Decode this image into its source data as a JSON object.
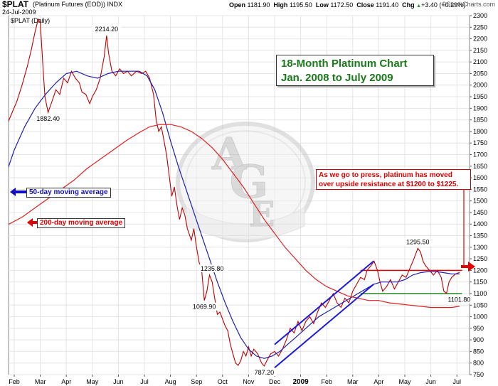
{
  "header": {
    "symbol": "$PLAT",
    "description": "(Platinum Futures (EOD)) INDX",
    "date": "24-Jul-2009",
    "open_label": "Open",
    "open": "1181.90",
    "high_label": "High",
    "high": "1195.50",
    "low_label": "Low",
    "low": "1172.50",
    "close_label": "Close",
    "close": "1191.40",
    "chg_label": "Chg",
    "chg": "+3.40 (+0.29%)",
    "chg_arrow": "▲",
    "brand": "©StockCharts.com"
  },
  "chart_data": {
    "type": "line",
    "panel_label": "$PLAT (Daily)",
    "title": "18-Month Platinum Chart",
    "subtitle": "Jan. 2008 to July 2009",
    "ylim": [
      750,
      2300
    ],
    "yticks": [
      750,
      800,
      850,
      900,
      950,
      1000,
      1050,
      1100,
      1150,
      1200,
      1250,
      1300,
      1350,
      1400,
      1450,
      1500,
      1550,
      1600,
      1650,
      1700,
      1750,
      1800,
      1850,
      1900,
      1950,
      2000,
      2050,
      2100,
      2150,
      2200,
      2250,
      2300
    ],
    "xlim": [
      0,
      19
    ],
    "xticks": [
      {
        "label": "Feb",
        "x": 0
      },
      {
        "label": "Mar",
        "x": 1
      },
      {
        "label": "Apr",
        "x": 2
      },
      {
        "label": "May",
        "x": 3
      },
      {
        "label": "Jun",
        "x": 4
      },
      {
        "label": "Jul",
        "x": 5
      },
      {
        "label": "Aug",
        "x": 6
      },
      {
        "label": "Sep",
        "x": 7
      },
      {
        "label": "Oct",
        "x": 8
      },
      {
        "label": "Nov",
        "x": 9
      },
      {
        "label": "Dec",
        "x": 10
      },
      {
        "label": "2009",
        "x": 11
      },
      {
        "label": "Feb",
        "x": 12
      },
      {
        "label": "Mar",
        "x": 13
      },
      {
        "label": "Apr",
        "x": 14
      },
      {
        "label": "May",
        "x": 15
      },
      {
        "label": "Jun",
        "x": 16
      },
      {
        "label": "Jul",
        "x": 17
      }
    ],
    "series": [
      {
        "key": "price",
        "color": "#c00000",
        "points": [
          [
            -0.55,
            1670
          ],
          [
            -0.45,
            1760
          ],
          [
            -0.35,
            1800
          ],
          [
            -0.2,
            1850
          ],
          [
            -0.05,
            1890
          ],
          [
            0.1,
            1930
          ],
          [
            0.3,
            2000
          ],
          [
            0.5,
            2080
          ],
          [
            0.65,
            2150
          ],
          [
            0.8,
            2230
          ],
          [
            0.92,
            2285
          ],
          [
            1.0,
            2270
          ],
          [
            1.05,
            2180
          ],
          [
            1.12,
            2050
          ],
          [
            1.18,
            1950
          ],
          [
            1.3,
            1882
          ],
          [
            1.45,
            1930
          ],
          [
            1.6,
            1980
          ],
          [
            1.75,
            1960
          ],
          [
            1.9,
            2030
          ],
          [
            2.05,
            2010
          ],
          [
            2.2,
            2060
          ],
          [
            2.35,
            2030
          ],
          [
            2.5,
            2010
          ],
          [
            2.6,
            1970
          ],
          [
            2.75,
            1960
          ],
          [
            2.9,
            1920
          ],
          [
            3.0,
            1950
          ],
          [
            3.15,
            1980
          ],
          [
            3.3,
            2030
          ],
          [
            3.45,
            2120
          ],
          [
            3.55,
            2214
          ],
          [
            3.62,
            2140
          ],
          [
            3.75,
            2060
          ],
          [
            3.9,
            2040
          ],
          [
            4.05,
            2070
          ],
          [
            4.2,
            2050
          ],
          [
            4.35,
            2060
          ],
          [
            4.5,
            2040
          ],
          [
            4.7,
            2060
          ],
          [
            4.9,
            2050
          ],
          [
            5.05,
            2060
          ],
          [
            5.2,
            2030
          ],
          [
            5.35,
            1960
          ],
          [
            5.45,
            1850
          ],
          [
            5.55,
            1800
          ],
          [
            5.65,
            1820
          ],
          [
            5.75,
            1760
          ],
          [
            5.85,
            1700
          ],
          [
            5.95,
            1610
          ],
          [
            6.05,
            1520
          ],
          [
            6.15,
            1560
          ],
          [
            6.25,
            1480
          ],
          [
            6.35,
            1420
          ],
          [
            6.45,
            1470
          ],
          [
            6.55,
            1440
          ],
          [
            6.65,
            1380
          ],
          [
            6.8,
            1330
          ],
          [
            6.9,
            1380
          ],
          [
            7.0,
            1300
          ],
          [
            7.1,
            1235
          ],
          [
            7.2,
            1200
          ],
          [
            7.3,
            1070
          ],
          [
            7.4,
            1110
          ],
          [
            7.5,
            1180
          ],
          [
            7.6,
            1150
          ],
          [
            7.7,
            1080
          ],
          [
            7.8,
            1010
          ],
          [
            7.9,
            1020
          ],
          [
            8.0,
            990
          ],
          [
            8.1,
            960
          ],
          [
            8.2,
            940
          ],
          [
            8.3,
            880
          ],
          [
            8.4,
            840
          ],
          [
            8.5,
            800
          ],
          [
            8.6,
            790
          ],
          [
            8.7,
            810
          ],
          [
            8.8,
            850
          ],
          [
            8.9,
            830
          ],
          [
            9.0,
            870
          ],
          [
            9.1,
            830
          ],
          [
            9.2,
            860
          ],
          [
            9.35,
            840
          ],
          [
            9.5,
            800
          ],
          [
            9.6,
            787
          ],
          [
            9.7,
            810
          ],
          [
            9.85,
            840
          ],
          [
            10.0,
            850
          ],
          [
            10.15,
            830
          ],
          [
            10.3,
            860
          ],
          [
            10.45,
            900
          ],
          [
            10.6,
            950
          ],
          [
            10.75,
            930
          ],
          [
            10.9,
            980
          ],
          [
            11.05,
            940
          ],
          [
            11.2,
            980
          ],
          [
            11.35,
            1000
          ],
          [
            11.5,
            970
          ],
          [
            11.65,
            1020
          ],
          [
            11.8,
            1060
          ],
          [
            11.95,
            1040
          ],
          [
            12.1,
            1070
          ],
          [
            12.25,
            1100
          ],
          [
            12.4,
            1060
          ],
          [
            12.55,
            1040
          ],
          [
            12.7,
            1080
          ],
          [
            12.85,
            1060
          ],
          [
            13.0,
            1110
          ],
          [
            13.15,
            1140
          ],
          [
            13.3,
            1170
          ],
          [
            13.45,
            1160
          ],
          [
            13.55,
            1200
          ],
          [
            13.7,
            1220
          ],
          [
            13.82,
            1240
          ],
          [
            13.95,
            1200
          ],
          [
            14.05,
            1150
          ],
          [
            14.15,
            1110
          ],
          [
            14.3,
            1130
          ],
          [
            14.45,
            1160
          ],
          [
            14.6,
            1120
          ],
          [
            14.75,
            1150
          ],
          [
            14.9,
            1180
          ],
          [
            15.05,
            1170
          ],
          [
            15.2,
            1210
          ],
          [
            15.35,
            1250
          ],
          [
            15.5,
            1295
          ],
          [
            15.6,
            1280
          ],
          [
            15.7,
            1240
          ],
          [
            15.8,
            1220
          ],
          [
            15.95,
            1200
          ],
          [
            16.1,
            1180
          ],
          [
            16.25,
            1200
          ],
          [
            16.4,
            1170
          ],
          [
            16.5,
            1110
          ],
          [
            16.6,
            1101
          ],
          [
            16.7,
            1150
          ],
          [
            16.8,
            1170
          ],
          [
            16.95,
            1185
          ],
          [
            17.1,
            1191
          ]
        ]
      },
      {
        "key": "ma50",
        "color": "#2020b0",
        "points": [
          [
            -0.55,
            1540
          ],
          [
            -0.3,
            1620
          ],
          [
            0,
            1720
          ],
          [
            0.4,
            1820
          ],
          [
            0.8,
            1900
          ],
          [
            1.2,
            1960
          ],
          [
            1.6,
            2010
          ],
          [
            2.0,
            2050
          ],
          [
            2.4,
            2060
          ],
          [
            2.8,
            2040
          ],
          [
            3.2,
            2030
          ],
          [
            3.6,
            2050
          ],
          [
            4.0,
            2060
          ],
          [
            4.4,
            2060
          ],
          [
            4.8,
            2060
          ],
          [
            5.1,
            2040
          ],
          [
            5.4,
            1980
          ],
          [
            5.7,
            1880
          ],
          [
            6.0,
            1760
          ],
          [
            6.3,
            1650
          ],
          [
            6.6,
            1550
          ],
          [
            6.9,
            1450
          ],
          [
            7.2,
            1350
          ],
          [
            7.5,
            1250
          ],
          [
            7.8,
            1150
          ],
          [
            8.1,
            1060
          ],
          [
            8.4,
            980
          ],
          [
            8.7,
            910
          ],
          [
            9.0,
            860
          ],
          [
            9.3,
            830
          ],
          [
            9.6,
            820
          ],
          [
            9.9,
            830
          ],
          [
            10.2,
            850
          ],
          [
            10.5,
            880
          ],
          [
            10.8,
            910
          ],
          [
            11.1,
            940
          ],
          [
            11.4,
            970
          ],
          [
            11.7,
            1000
          ],
          [
            12.0,
            1020
          ],
          [
            12.3,
            1040
          ],
          [
            12.6,
            1060
          ],
          [
            12.9,
            1080
          ],
          [
            13.2,
            1100
          ],
          [
            13.5,
            1120
          ],
          [
            13.8,
            1140
          ],
          [
            14.1,
            1150
          ],
          [
            14.4,
            1150
          ],
          [
            14.7,
            1150
          ],
          [
            15.0,
            1160
          ],
          [
            15.3,
            1180
          ],
          [
            15.6,
            1190
          ],
          [
            15.9,
            1195
          ],
          [
            16.2,
            1195
          ],
          [
            16.5,
            1190
          ],
          [
            16.8,
            1185
          ],
          [
            17.1,
            1185
          ]
        ]
      },
      {
        "key": "ma200",
        "color": "#e02020",
        "points": [
          [
            -0.55,
            1380
          ],
          [
            -0.2,
            1400
          ],
          [
            0.3,
            1430
          ],
          [
            0.8,
            1470
          ],
          [
            1.3,
            1510
          ],
          [
            1.8,
            1550
          ],
          [
            2.3,
            1590
          ],
          [
            2.8,
            1640
          ],
          [
            3.3,
            1680
          ],
          [
            3.8,
            1720
          ],
          [
            4.3,
            1760
          ],
          [
            4.8,
            1795
          ],
          [
            5.2,
            1820
          ],
          [
            5.6,
            1830
          ],
          [
            6.0,
            1830
          ],
          [
            6.4,
            1820
          ],
          [
            6.8,
            1800
          ],
          [
            7.2,
            1770
          ],
          [
            7.6,
            1730
          ],
          [
            8.0,
            1680
          ],
          [
            8.4,
            1620
          ],
          [
            8.8,
            1560
          ],
          [
            9.2,
            1490
          ],
          [
            9.6,
            1420
          ],
          [
            10.0,
            1360
          ],
          [
            10.4,
            1300
          ],
          [
            10.8,
            1250
          ],
          [
            11.2,
            1200
          ],
          [
            11.6,
            1160
          ],
          [
            12.0,
            1130
          ],
          [
            12.4,
            1110
          ],
          [
            12.8,
            1090
          ],
          [
            13.2,
            1080
          ],
          [
            13.6,
            1070
          ],
          [
            14.0,
            1070
          ],
          [
            14.4,
            1060
          ],
          [
            14.8,
            1055
          ],
          [
            15.2,
            1050
          ],
          [
            15.6,
            1045
          ],
          [
            16.0,
            1040
          ],
          [
            16.4,
            1040
          ],
          [
            16.8,
            1040
          ],
          [
            17.1,
            1045
          ]
        ]
      }
    ],
    "channel": {
      "color": "#1a1adc",
      "upper": [
        [
          10.0,
          880
        ],
        [
          13.8,
          1240
        ]
      ],
      "lower": [
        [
          10.0,
          780
        ],
        [
          13.8,
          1140
        ]
      ]
    },
    "levels": [
      {
        "key": "resistance",
        "value": 1200,
        "from": 13.3,
        "to": 17.2,
        "color": "#e00000"
      },
      {
        "key": "support",
        "value": 1100,
        "from": 13.3,
        "to": 17.2,
        "color": "#108010"
      }
    ],
    "annotations": [
      {
        "text": "2214.20",
        "x": 3.55,
        "y": 2214,
        "pos": "above"
      },
      {
        "text": "1882.40",
        "x": 1.3,
        "y": 1882,
        "pos": "below"
      },
      {
        "text": "1235.80",
        "x": 7.1,
        "y": 1235,
        "pos": "right"
      },
      {
        "text": "1069.90",
        "x": 7.3,
        "y": 1070,
        "pos": "below"
      },
      {
        "text": "787.20",
        "x": 9.6,
        "y": 787,
        "pos": "below"
      },
      {
        "text": "1295.50",
        "x": 15.5,
        "y": 1295,
        "pos": "above"
      },
      {
        "text": "1101.80",
        "x": 16.6,
        "y": 1101,
        "pos": "right"
      }
    ],
    "callouts": {
      "title_line1": "18-Month Platinum Chart",
      "title_line2": "Jan. 2008 to July 2009",
      "note_line1": "As we go to press, platinum has moved",
      "note_line2": "over upside resistance at $1200 to $1225.",
      "ma50_label": "50-day moving average",
      "ma200_label": "200-day moving average"
    },
    "watermark": {
      "letters": "AGE"
    },
    "grid": true
  }
}
